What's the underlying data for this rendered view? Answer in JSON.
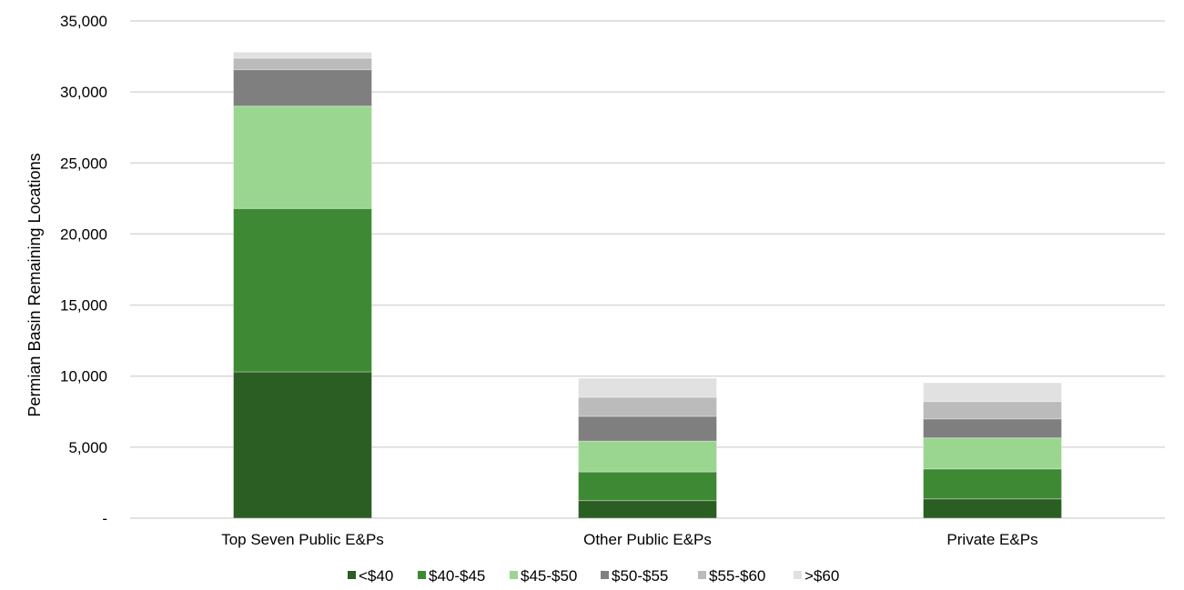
{
  "chart_data": {
    "type": "bar",
    "stacked": true,
    "ylabel": "Permian Basin Remaining Locations",
    "xlabel": "",
    "ylim": [
      0,
      35000
    ],
    "yticks": [
      0,
      5000,
      10000,
      15000,
      20000,
      25000,
      30000,
      35000
    ],
    "ytick_labels": [
      "-",
      "5,000",
      "10,000",
      "15,000",
      "20,000",
      "25,000",
      "30,000",
      "35,000"
    ],
    "grid": true,
    "legend_position": "bottom",
    "categories": [
      "Top Seven Public E&Ps",
      "Other Public E&Ps",
      "Private E&Ps"
    ],
    "series": [
      {
        "name": "<$40",
        "color": "#2b5e23",
        "values": [
          10300,
          1240,
          1360
        ]
      },
      {
        "name": "$40-$45",
        "color": "#3e8a34",
        "values": [
          11500,
          2020,
          2110
        ]
      },
      {
        "name": "$45-$50",
        "color": "#9ad690",
        "values": [
          7200,
          2160,
          2180
        ]
      },
      {
        "name": "$50-$55",
        "color": "#7f7f7f",
        "values": [
          2570,
          1750,
          1340
        ]
      },
      {
        "name": "$55-$60",
        "color": "#bbbbbb",
        "values": [
          810,
          1340,
          1220
        ]
      },
      {
        "name": ">$60",
        "color": "#e1e1e1",
        "values": [
          420,
          1340,
          1320
        ]
      }
    ]
  }
}
